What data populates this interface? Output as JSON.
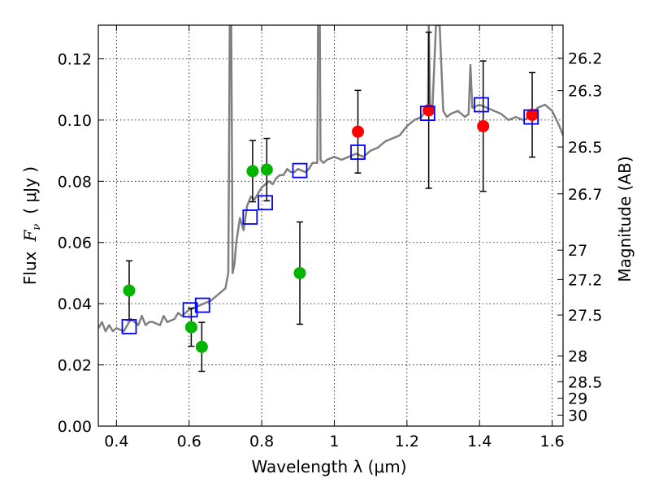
{
  "chart_data": {
    "type": "scatter",
    "xlabel": "Wavelength  λ (μm)",
    "ylabel": "Flux  F_ν  ( μJy )",
    "ylabel_parts": {
      "flux": "Flux",
      "fnu_main": "F",
      "fnu_sub": "ν",
      "unit": "( μJy )"
    },
    "y2label": "Magnitude (AB)",
    "xlim": [
      0.35,
      1.63
    ],
    "ylim": [
      0.0,
      0.131
    ],
    "grid": true,
    "x_ticks": [
      0.4,
      0.6,
      0.8,
      1.0,
      1.2,
      1.4,
      1.6
    ],
    "x_tick_labels": [
      "0.4",
      "0.6",
      "0.8",
      "1",
      "1.2",
      "1.4",
      "1.6"
    ],
    "y_ticks": [
      0.0,
      0.02,
      0.04,
      0.06,
      0.08,
      0.1,
      0.12
    ],
    "y_tick_labels": [
      "0.00",
      "0.02",
      "0.04",
      "0.06",
      "0.08",
      "0.10",
      "0.12"
    ],
    "mag_ticks": [
      {
        "label": "26.2",
        "flux": 0.1202
      },
      {
        "label": "26.3",
        "flux": 0.1096
      },
      {
        "label": "26.5",
        "flux": 0.0912
      },
      {
        "label": "26.7",
        "flux": 0.0759
      },
      {
        "label": "27",
        "flux": 0.0575
      },
      {
        "label": "27.2",
        "flux": 0.0479
      },
      {
        "label": "27.5",
        "flux": 0.0363
      },
      {
        "label": "28",
        "flux": 0.0229
      },
      {
        "label": "28.5",
        "flux": 0.0145
      },
      {
        "label": "29",
        "flux": 0.0091
      },
      {
        "label": "30",
        "flux": 0.0036
      }
    ],
    "series": [
      {
        "name": "model spectrum",
        "kind": "line",
        "color": "#808080",
        "points": [
          [
            0.35,
            0.032
          ],
          [
            0.36,
            0.034
          ],
          [
            0.37,
            0.031
          ],
          [
            0.38,
            0.033
          ],
          [
            0.39,
            0.031
          ],
          [
            0.4,
            0.032
          ],
          [
            0.42,
            0.031
          ],
          [
            0.44,
            0.035
          ],
          [
            0.46,
            0.033
          ],
          [
            0.47,
            0.036
          ],
          [
            0.48,
            0.033
          ],
          [
            0.49,
            0.034
          ],
          [
            0.5,
            0.034
          ],
          [
            0.52,
            0.033
          ],
          [
            0.53,
            0.036
          ],
          [
            0.54,
            0.034
          ],
          [
            0.56,
            0.035
          ],
          [
            0.57,
            0.037
          ],
          [
            0.58,
            0.036
          ],
          [
            0.6,
            0.038
          ],
          [
            0.62,
            0.039
          ],
          [
            0.64,
            0.04
          ],
          [
            0.66,
            0.041
          ],
          [
            0.68,
            0.043
          ],
          [
            0.7,
            0.045
          ],
          [
            0.708,
            0.05
          ],
          [
            0.712,
            0.131
          ],
          [
            0.716,
            0.131
          ],
          [
            0.72,
            0.05
          ],
          [
            0.725,
            0.053
          ],
          [
            0.73,
            0.06
          ],
          [
            0.74,
            0.068
          ],
          [
            0.75,
            0.064
          ],
          [
            0.76,
            0.072
          ],
          [
            0.77,
            0.075
          ],
          [
            0.78,
            0.074
          ],
          [
            0.79,
            0.076
          ],
          [
            0.8,
            0.078
          ],
          [
            0.81,
            0.079
          ],
          [
            0.82,
            0.08
          ],
          [
            0.83,
            0.079
          ],
          [
            0.84,
            0.081
          ],
          [
            0.85,
            0.082
          ],
          [
            0.86,
            0.082
          ],
          [
            0.87,
            0.084
          ],
          [
            0.88,
            0.083
          ],
          [
            0.89,
            0.083
          ],
          [
            0.9,
            0.084
          ],
          [
            0.92,
            0.083
          ],
          [
            0.93,
            0.084
          ],
          [
            0.94,
            0.086
          ],
          [
            0.953,
            0.086
          ],
          [
            0.955,
            0.131
          ],
          [
            0.96,
            0.131
          ],
          [
            0.962,
            0.087
          ],
          [
            0.97,
            0.086
          ],
          [
            0.98,
            0.087
          ],
          [
            1.0,
            0.088
          ],
          [
            1.02,
            0.087
          ],
          [
            1.04,
            0.088
          ],
          [
            1.06,
            0.089
          ],
          [
            1.08,
            0.088
          ],
          [
            1.1,
            0.09
          ],
          [
            1.12,
            0.091
          ],
          [
            1.14,
            0.093
          ],
          [
            1.16,
            0.094
          ],
          [
            1.18,
            0.095
          ],
          [
            1.2,
            0.098
          ],
          [
            1.22,
            0.1
          ],
          [
            1.24,
            0.101
          ],
          [
            1.25,
            0.103
          ],
          [
            1.258,
            0.104
          ],
          [
            1.26,
            0.131
          ],
          [
            1.264,
            0.104
          ],
          [
            1.27,
            0.103
          ],
          [
            1.28,
            0.131
          ],
          [
            1.29,
            0.131
          ],
          [
            1.3,
            0.103
          ],
          [
            1.31,
            0.101
          ],
          [
            1.32,
            0.102
          ],
          [
            1.34,
            0.103
          ],
          [
            1.36,
            0.101
          ],
          [
            1.37,
            0.102
          ],
          [
            1.375,
            0.118
          ],
          [
            1.38,
            0.104
          ],
          [
            1.4,
            0.105
          ],
          [
            1.42,
            0.104
          ],
          [
            1.44,
            0.103
          ],
          [
            1.46,
            0.102
          ],
          [
            1.48,
            0.1
          ],
          [
            1.5,
            0.101
          ],
          [
            1.52,
            0.1
          ],
          [
            1.54,
            0.101
          ],
          [
            1.56,
            0.104
          ],
          [
            1.58,
            0.105
          ],
          [
            1.6,
            0.103
          ],
          [
            1.62,
            0.098
          ],
          [
            1.63,
            0.095
          ]
        ]
      },
      {
        "name": "green observations",
        "kind": "errorbar",
        "color": "#00b400",
        "points": [
          {
            "x": 0.435,
            "y": 0.0443,
            "err": 0.0097
          },
          {
            "x": 0.606,
            "y": 0.0323,
            "err": 0.0062
          },
          {
            "x": 0.635,
            "y": 0.0259,
            "err": 0.008
          },
          {
            "x": 0.775,
            "y": 0.0833,
            "err": 0.01
          },
          {
            "x": 0.814,
            "y": 0.0838,
            "err": 0.0102
          },
          {
            "x": 0.905,
            "y": 0.05,
            "err": 0.0167
          }
        ]
      },
      {
        "name": "red observations",
        "kind": "errorbar",
        "color": "#ff0000",
        "points": [
          {
            "x": 1.065,
            "y": 0.0962,
            "err": 0.0135
          },
          {
            "x": 1.26,
            "y": 0.1032,
            "err": 0.0255
          },
          {
            "x": 1.41,
            "y": 0.098,
            "err": 0.0213
          },
          {
            "x": 1.545,
            "y": 0.1017,
            "err": 0.0138
          }
        ]
      },
      {
        "name": "model photometry",
        "kind": "open-square",
        "color": "#0000ff",
        "points": [
          [
            0.435,
            0.0325
          ],
          [
            0.603,
            0.038
          ],
          [
            0.637,
            0.0395
          ],
          [
            0.768,
            0.0683
          ],
          [
            0.81,
            0.073
          ],
          [
            0.905,
            0.0835
          ],
          [
            1.065,
            0.0895
          ],
          [
            1.257,
            0.1022
          ],
          [
            1.405,
            0.105
          ],
          [
            1.542,
            0.101
          ]
        ]
      }
    ]
  }
}
